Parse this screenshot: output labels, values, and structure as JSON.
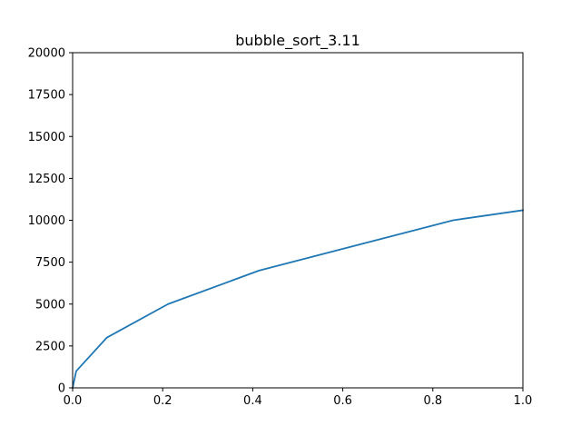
{
  "chart_data": {
    "type": "line",
    "title": "bubble_sort_3.11",
    "xlabel": "",
    "ylabel": "",
    "xlim": [
      0.0,
      1.0
    ],
    "ylim": [
      0,
      20000
    ],
    "x_ticks": [
      0.0,
      0.2,
      0.4,
      0.6,
      0.8,
      1.0
    ],
    "x_tick_labels": [
      "0.0",
      "0.2",
      "0.4",
      "0.6",
      "0.8",
      "1.0"
    ],
    "y_ticks": [
      0,
      2500,
      5000,
      7500,
      10000,
      12500,
      15000,
      17500,
      20000
    ],
    "y_tick_labels": [
      "0",
      "2500",
      "5000",
      "7500",
      "10000",
      "12500",
      "15000",
      "17500",
      "20000"
    ],
    "grid": false,
    "series": [
      {
        "color": "#1f77b4",
        "x": [
          0.0,
          0.008,
          0.076,
          0.212,
          0.414,
          0.845,
          1.0
        ],
        "y": [
          0,
          1000,
          3000,
          5000,
          7000,
          10000,
          10600
        ]
      }
    ]
  }
}
